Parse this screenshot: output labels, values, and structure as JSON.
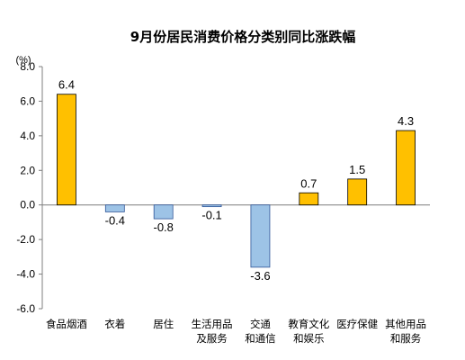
{
  "chart_data": {
    "type": "bar",
    "title": "9月份居民消费价格分类别同比涨跌幅",
    "unit_label": "(%)",
    "ylim": [
      -6.0,
      8.0
    ],
    "yticks": [
      "8.0",
      "6.0",
      "4.0",
      "2.0",
      "0.0",
      "-2.0",
      "-4.0",
      "-6.0"
    ],
    "ytick_values": [
      8,
      6,
      4,
      2,
      0,
      -2,
      -4,
      -6
    ],
    "categories": [
      [
        "食品烟酒"
      ],
      [
        "衣着"
      ],
      [
        "居住"
      ],
      [
        "生活用品",
        "及服务"
      ],
      [
        "交通",
        "和通信"
      ],
      [
        "教育文化",
        "和娱乐"
      ],
      [
        "医疗保健"
      ],
      [
        "其他用品",
        "和服务"
      ]
    ],
    "values": [
      6.4,
      -0.4,
      -0.8,
      -0.1,
      -3.6,
      0.7,
      1.5,
      4.3
    ],
    "value_labels": [
      "6.4",
      "-0.4",
      "-0.8",
      "-0.1",
      "-3.6",
      "0.7",
      "1.5",
      "4.3"
    ],
    "colors": {
      "positive_fill": "#FFC000",
      "positive_stroke": "#000000",
      "negative_fill": "#9DC3E6",
      "negative_stroke": "#2F5597",
      "axis": "#7F7F7F"
    },
    "grid": false,
    "legend": "none"
  }
}
